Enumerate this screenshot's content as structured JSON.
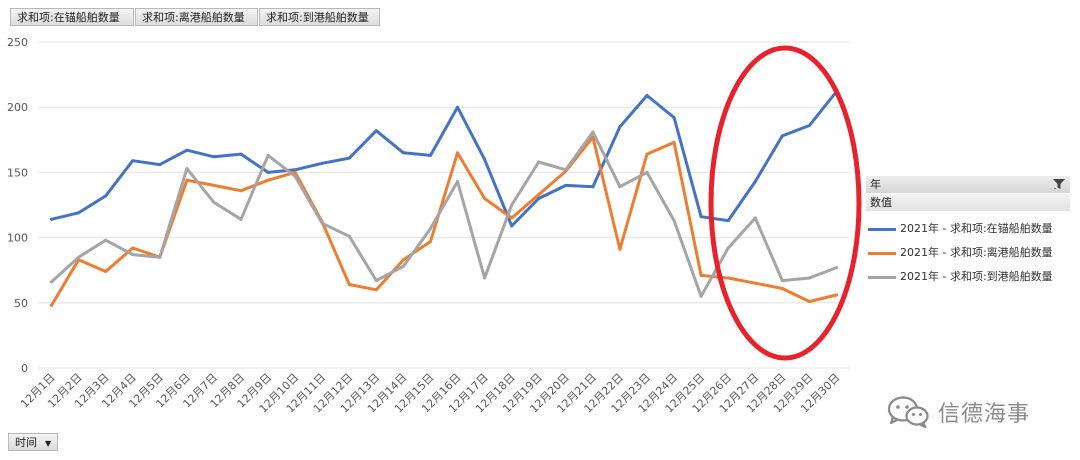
{
  "field_buttons": {
    "anchored": "求和项:在锚船舶数量",
    "departed": "求和项:离港船舶数量",
    "arrived": "求和项:到港船舶数量"
  },
  "legend": {
    "header_year": "年",
    "header_values": "数值",
    "items": [
      {
        "label": "2021年 - 求和项:在锚船舶数量",
        "color": "#4472c4"
      },
      {
        "label": "2021年 - 求和项:离港船舶数量",
        "color": "#ed7d31"
      },
      {
        "label": "2021年 - 求和项:到港船舶数量",
        "color": "#a5a5a5"
      }
    ]
  },
  "axis_field_button": "时间",
  "watermark": "信德海事",
  "annotation": {
    "color": "#e8222a",
    "shape": "ellipse",
    "highlights": "12月26日-12月30日"
  },
  "chart_data": {
    "type": "line",
    "title": "",
    "xlabel": "",
    "ylabel": "",
    "ylim": [
      0,
      250
    ],
    "yticks": [
      0,
      50,
      100,
      150,
      200,
      250
    ],
    "grid": true,
    "legend_position": "right",
    "categories": [
      "12月1日",
      "12月2日",
      "12月3日",
      "12月4日",
      "12月5日",
      "12月6日",
      "12月7日",
      "12月8日",
      "12月9日",
      "12月10日",
      "12月11日",
      "12月12日",
      "12月13日",
      "12月14日",
      "12月15日",
      "12月16日",
      "12月17日",
      "12月18日",
      "12月19日",
      "12月20日",
      "12月21日",
      "12月22日",
      "12月23日",
      "12月24日",
      "12月25日",
      "12月26日",
      "12月27日",
      "12月28日",
      "12月29日",
      "12月30日"
    ],
    "series": [
      {
        "name": "2021年 - 求和项:在锚船舶数量",
        "color": "#4472c4",
        "values": [
          114,
          119,
          132,
          159,
          156,
          167,
          162,
          164,
          150,
          152,
          157,
          161,
          182,
          165,
          163,
          200,
          160,
          109,
          130,
          140,
          139,
          185,
          209,
          192,
          116,
          113,
          143,
          178,
          186,
          212
        ]
      },
      {
        "name": "2021年 - 求和项:离港船舶数量",
        "color": "#ed7d31",
        "values": [
          48,
          83,
          74,
          92,
          85,
          144,
          140,
          136,
          144,
          150,
          112,
          64,
          60,
          83,
          97,
          165,
          130,
          115,
          133,
          151,
          177,
          91,
          164,
          173,
          71,
          69,
          65,
          61,
          51,
          56
        ]
      },
      {
        "name": "2021年 - 求和项:到港船舶数量",
        "color": "#a5a5a5",
        "values": [
          66,
          85,
          98,
          87,
          85,
          153,
          127,
          114,
          163,
          147,
          111,
          101,
          67,
          78,
          107,
          143,
          69,
          125,
          158,
          152,
          181,
          139,
          150,
          113,
          55,
          92,
          115,
          67,
          69,
          77
        ]
      }
    ]
  }
}
